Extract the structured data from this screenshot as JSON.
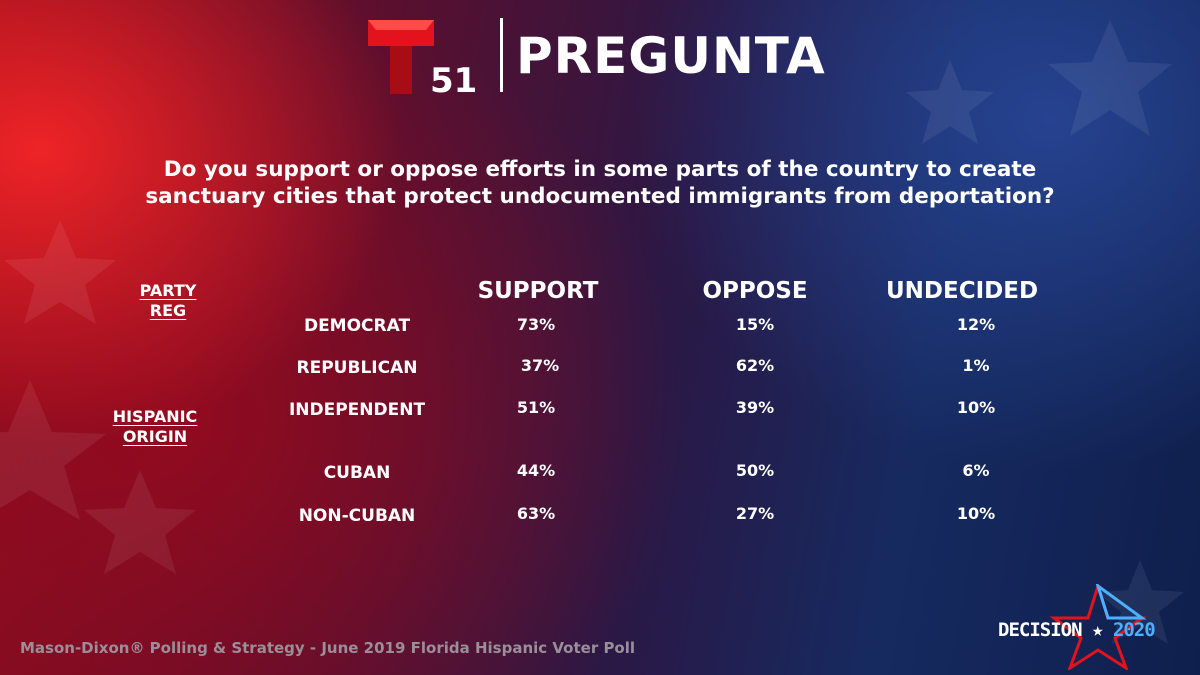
{
  "header": {
    "logo_text": "51",
    "title": "PREGUNTA"
  },
  "question": {
    "line1": "Do you support or oppose efforts in some parts of the country to create",
    "line2": "sanctuary cities that protect undocumented immigrants from deportation?"
  },
  "categories": {
    "party_line1": "PARTY",
    "party_line2": "REG",
    "hispanic_line1": "HISPANIC",
    "hispanic_line2": "ORIGIN"
  },
  "table": {
    "columns": [
      "SUPPORT",
      "OPPOSE",
      "UNDECIDED"
    ],
    "rows": [
      {
        "label": "DEMOCRAT",
        "values": [
          "73%",
          "15%",
          "12%"
        ]
      },
      {
        "label": "REPUBLICAN",
        "values": [
          "37%",
          "62%",
          "1%"
        ]
      },
      {
        "label": "INDEPENDENT",
        "values": [
          "51%",
          "39%",
          "10%"
        ]
      },
      {
        "label": "CUBAN",
        "values": [
          "44%",
          "50%",
          "6%"
        ]
      },
      {
        "label": "NON-CUBAN",
        "values": [
          "63%",
          "27%",
          "10%"
        ]
      }
    ]
  },
  "footer": {
    "source": "Mason-Dixon® Polling & Strategy - June 2019 Florida Hispanic Voter Poll",
    "decision_word": "DECISION",
    "decision_star": "★",
    "decision_year": "2020"
  },
  "colors": {
    "brand_red": "#e3131e",
    "accent_blue": "#4ab0ff",
    "text": "#ffffff",
    "source_text": "#9a8f99"
  }
}
